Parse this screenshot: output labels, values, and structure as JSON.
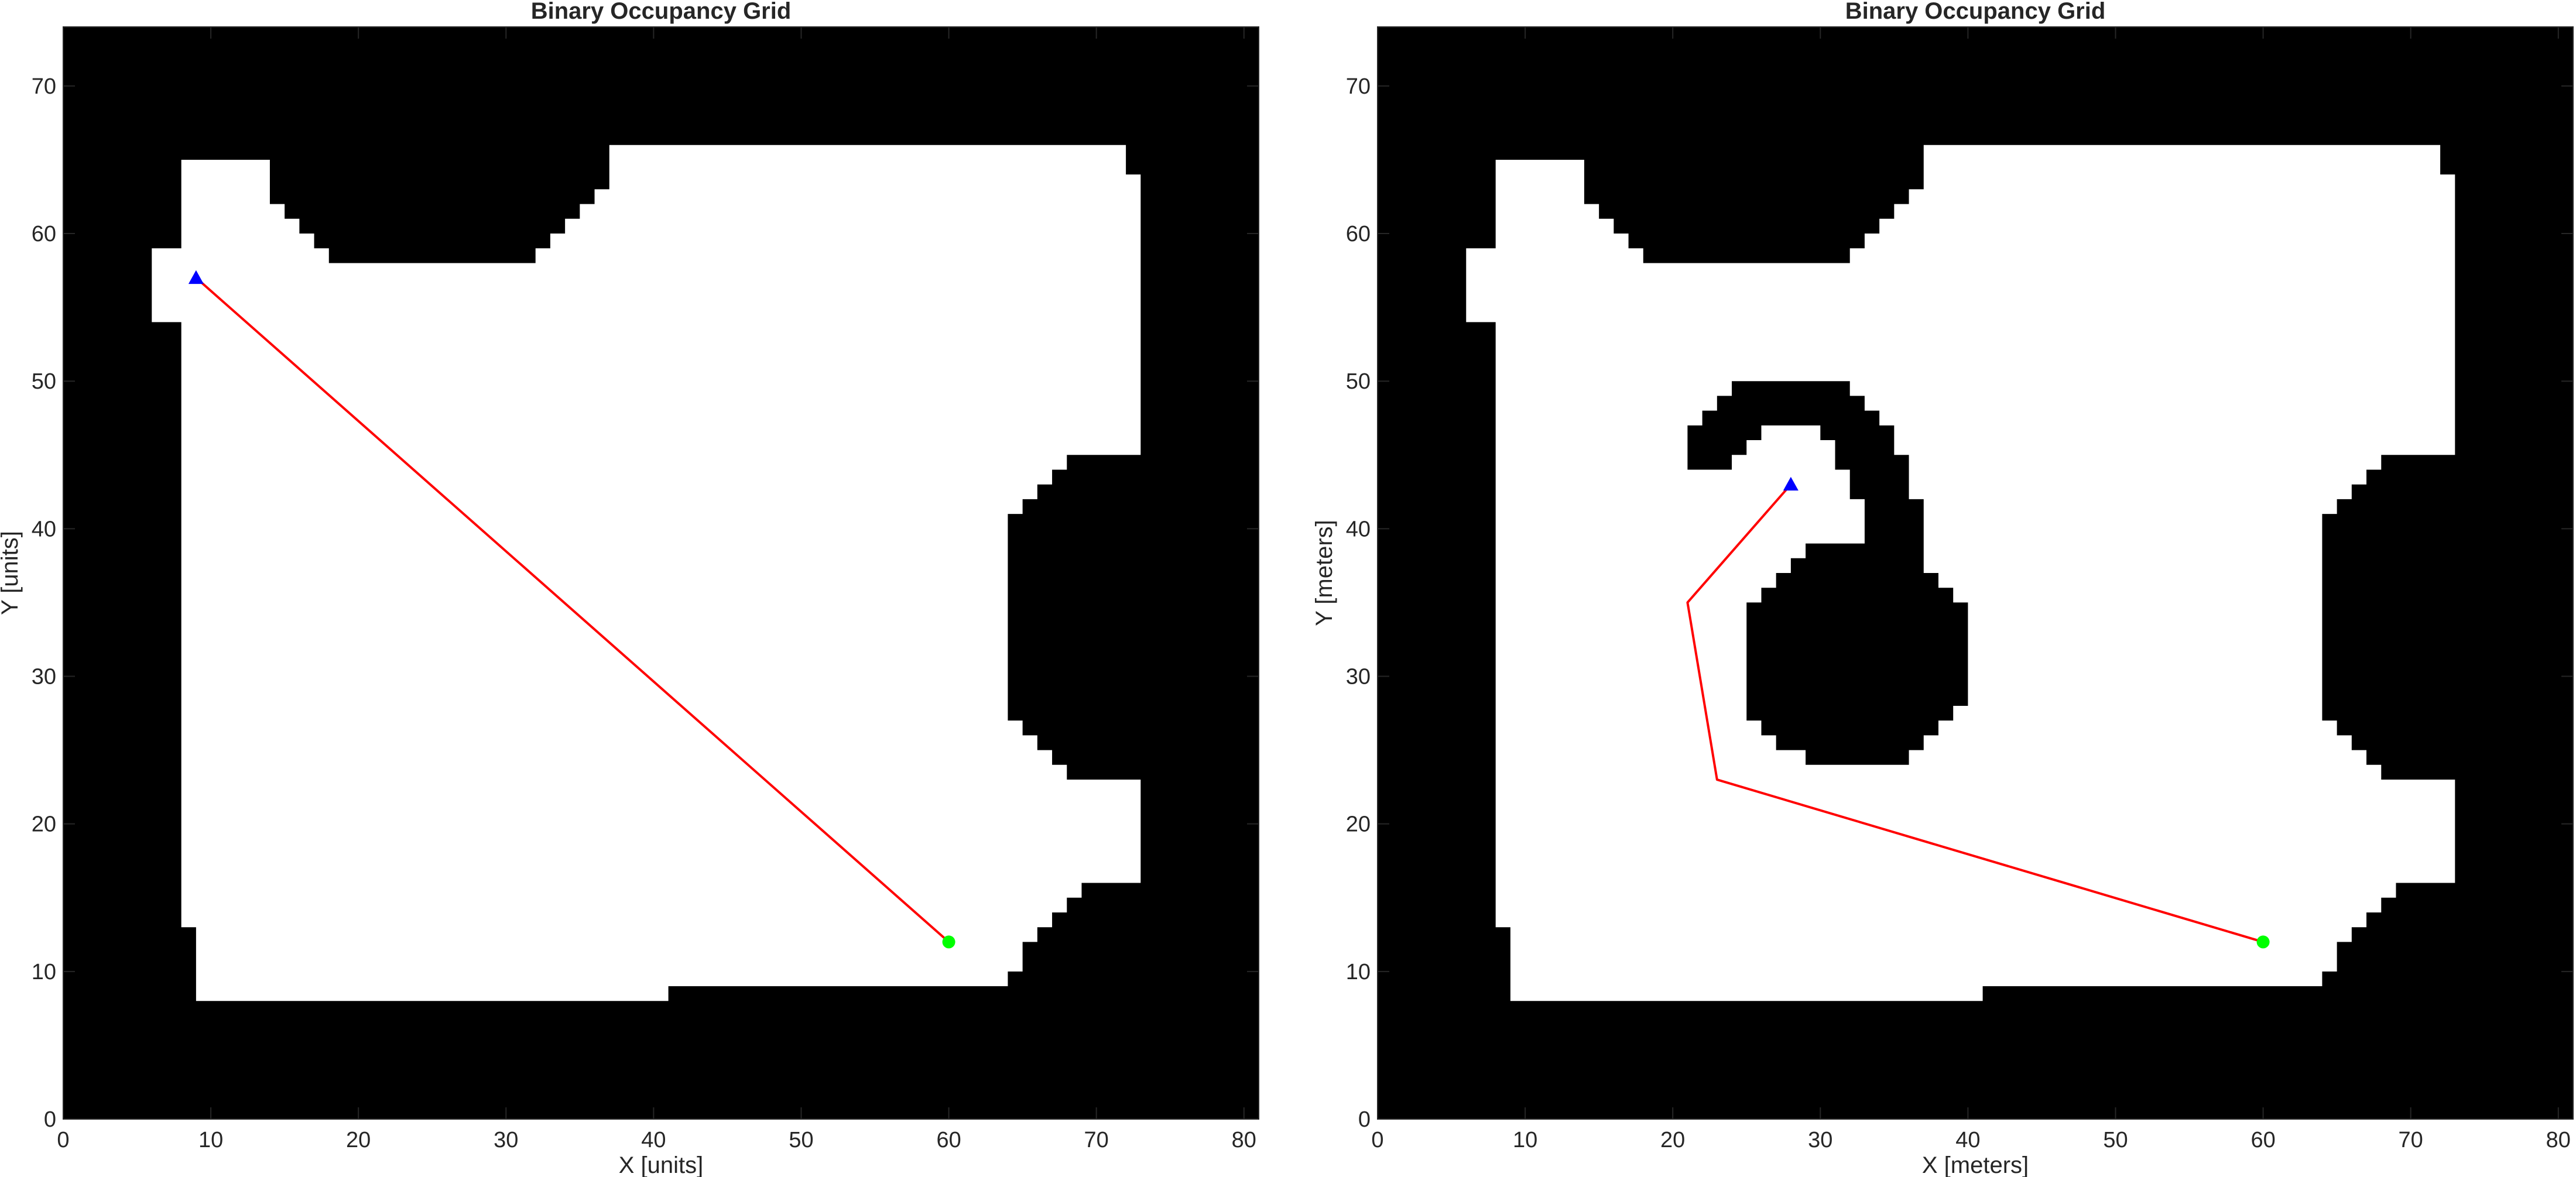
{
  "chart_data": [
    {
      "type": "occupancy-grid",
      "title": "Binary Occupancy Grid",
      "xlabel": "X [units]",
      "ylabel": "Y [units]",
      "xlim": [
        0,
        81
      ],
      "ylim": [
        0,
        74
      ],
      "xticks": [
        "0",
        "10",
        "20",
        "30",
        "40",
        "50",
        "60",
        "70",
        "80"
      ],
      "yticks": [
        "0",
        "10",
        "20",
        "30",
        "40",
        "50",
        "60",
        "70"
      ],
      "colors": {
        "occupied": "#000000",
        "free": "#ffffff",
        "path": "#ff0000",
        "start": "#0000ff",
        "goal": "#00ff00"
      },
      "start": {
        "x": 9,
        "y": 57,
        "marker": "triangle"
      },
      "goal": {
        "x": 60,
        "y": 12,
        "marker": "circle"
      },
      "path": [
        [
          9,
          57
        ],
        [
          60,
          12
        ]
      ],
      "free_area": [
        [
          6,
          59
        ],
        [
          8,
          59
        ],
        [
          8,
          65
        ],
        [
          14,
          65
        ],
        [
          14,
          62
        ],
        [
          15,
          62
        ],
        [
          15,
          61
        ],
        [
          16,
          61
        ],
        [
          16,
          60
        ],
        [
          17,
          60
        ],
        [
          17,
          59
        ],
        [
          18,
          59
        ],
        [
          18,
          58
        ],
        [
          32,
          58
        ],
        [
          32,
          59
        ],
        [
          33,
          59
        ],
        [
          33,
          60
        ],
        [
          34,
          60
        ],
        [
          34,
          61
        ],
        [
          35,
          61
        ],
        [
          35,
          62
        ],
        [
          36,
          62
        ],
        [
          36,
          63
        ],
        [
          37,
          63
        ],
        [
          37,
          66
        ],
        [
          72,
          66
        ],
        [
          72,
          64
        ],
        [
          73,
          64
        ],
        [
          73,
          45
        ],
        [
          68,
          45
        ],
        [
          68,
          44
        ],
        [
          67,
          44
        ],
        [
          67,
          43
        ],
        [
          66,
          43
        ],
        [
          66,
          42
        ],
        [
          65,
          42
        ],
        [
          65,
          41
        ],
        [
          64,
          41
        ],
        [
          64,
          27
        ],
        [
          65,
          27
        ],
        [
          65,
          26
        ],
        [
          66,
          26
        ],
        [
          66,
          25
        ],
        [
          67,
          25
        ],
        [
          67,
          24
        ],
        [
          68,
          24
        ],
        [
          68,
          23
        ],
        [
          73,
          23
        ],
        [
          73,
          16
        ],
        [
          69,
          16
        ],
        [
          69,
          15
        ],
        [
          68,
          15
        ],
        [
          68,
          14
        ],
        [
          67,
          14
        ],
        [
          67,
          13
        ],
        [
          66,
          13
        ],
        [
          66,
          12
        ],
        [
          65,
          12
        ],
        [
          65,
          10
        ],
        [
          64,
          10
        ],
        [
          64,
          9
        ],
        [
          41,
          9
        ],
        [
          41,
          8
        ],
        [
          9,
          8
        ],
        [
          9,
          13
        ],
        [
          8,
          13
        ],
        [
          8,
          54
        ],
        [
          6,
          54
        ]
      ],
      "obstacles": []
    },
    {
      "type": "occupancy-grid",
      "title": "Binary Occupancy Grid",
      "xlabel": "X [meters]",
      "ylabel": "Y [meters]",
      "xlim": [
        0,
        81
      ],
      "ylim": [
        0,
        74
      ],
      "xticks": [
        "0",
        "10",
        "20",
        "30",
        "40",
        "50",
        "60",
        "70",
        "80"
      ],
      "yticks": [
        "0",
        "10",
        "20",
        "30",
        "40",
        "50",
        "60",
        "70"
      ],
      "colors": {
        "occupied": "#000000",
        "free": "#ffffff",
        "path": "#ff0000",
        "start": "#0000ff",
        "goal": "#00ff00"
      },
      "start": {
        "x": 28,
        "y": 43,
        "marker": "triangle"
      },
      "goal": {
        "x": 60,
        "y": 12,
        "marker": "circle"
      },
      "path": [
        [
          28,
          43
        ],
        [
          21,
          35
        ],
        [
          23,
          23
        ],
        [
          60,
          12
        ]
      ],
      "free_area": [
        [
          6,
          59
        ],
        [
          8,
          59
        ],
        [
          8,
          65
        ],
        [
          14,
          65
        ],
        [
          14,
          62
        ],
        [
          15,
          62
        ],
        [
          15,
          61
        ],
        [
          16,
          61
        ],
        [
          16,
          60
        ],
        [
          17,
          60
        ],
        [
          17,
          59
        ],
        [
          18,
          59
        ],
        [
          18,
          58
        ],
        [
          32,
          58
        ],
        [
          32,
          59
        ],
        [
          33,
          59
        ],
        [
          33,
          60
        ],
        [
          34,
          60
        ],
        [
          34,
          61
        ],
        [
          35,
          61
        ],
        [
          35,
          62
        ],
        [
          36,
          62
        ],
        [
          36,
          63
        ],
        [
          37,
          63
        ],
        [
          37,
          66
        ],
        [
          72,
          66
        ],
        [
          72,
          64
        ],
        [
          73,
          64
        ],
        [
          73,
          45
        ],
        [
          68,
          45
        ],
        [
          68,
          44
        ],
        [
          67,
          44
        ],
        [
          67,
          43
        ],
        [
          66,
          43
        ],
        [
          66,
          42
        ],
        [
          65,
          42
        ],
        [
          65,
          41
        ],
        [
          64,
          41
        ],
        [
          64,
          27
        ],
        [
          65,
          27
        ],
        [
          65,
          26
        ],
        [
          66,
          26
        ],
        [
          66,
          25
        ],
        [
          67,
          25
        ],
        [
          67,
          24
        ],
        [
          68,
          24
        ],
        [
          68,
          23
        ],
        [
          73,
          23
        ],
        [
          73,
          16
        ],
        [
          69,
          16
        ],
        [
          69,
          15
        ],
        [
          68,
          15
        ],
        [
          68,
          14
        ],
        [
          67,
          14
        ],
        [
          67,
          13
        ],
        [
          66,
          13
        ],
        [
          66,
          12
        ],
        [
          65,
          12
        ],
        [
          65,
          10
        ],
        [
          64,
          10
        ],
        [
          64,
          9
        ],
        [
          41,
          9
        ],
        [
          41,
          8
        ],
        [
          9,
          8
        ],
        [
          9,
          13
        ],
        [
          8,
          13
        ],
        [
          8,
          54
        ],
        [
          6,
          54
        ]
      ],
      "obstacles": [
        [
          [
            21,
            44
          ],
          [
            21,
            47
          ],
          [
            22,
            47
          ],
          [
            22,
            48
          ],
          [
            23,
            48
          ],
          [
            23,
            49
          ],
          [
            24,
            49
          ],
          [
            24,
            50
          ],
          [
            32,
            50
          ],
          [
            32,
            49
          ],
          [
            33,
            49
          ],
          [
            33,
            48
          ],
          [
            34,
            48
          ],
          [
            34,
            47
          ],
          [
            35,
            47
          ],
          [
            35,
            45
          ],
          [
            36,
            45
          ],
          [
            36,
            42
          ],
          [
            37,
            42
          ],
          [
            37,
            37
          ],
          [
            38,
            37
          ],
          [
            38,
            36
          ],
          [
            39,
            36
          ],
          [
            39,
            35
          ],
          [
            40,
            35
          ],
          [
            40,
            28
          ],
          [
            39,
            28
          ],
          [
            39,
            27
          ],
          [
            38,
            27
          ],
          [
            38,
            26
          ],
          [
            37,
            26
          ],
          [
            37,
            25
          ],
          [
            36,
            25
          ],
          [
            36,
            24
          ],
          [
            29,
            24
          ],
          [
            29,
            25
          ],
          [
            27,
            25
          ],
          [
            27,
            26
          ],
          [
            26,
            26
          ],
          [
            26,
            27
          ],
          [
            25,
            27
          ],
          [
            25,
            35
          ],
          [
            26,
            35
          ],
          [
            26,
            36
          ],
          [
            27,
            36
          ],
          [
            27,
            37
          ],
          [
            28,
            37
          ],
          [
            28,
            38
          ],
          [
            29,
            38
          ],
          [
            29,
            39
          ],
          [
            33,
            39
          ],
          [
            33,
            42
          ],
          [
            32,
            42
          ],
          [
            32,
            44
          ],
          [
            31,
            44
          ],
          [
            31,
            46
          ],
          [
            30,
            46
          ],
          [
            30,
            47
          ],
          [
            26,
            47
          ],
          [
            26,
            46
          ],
          [
            25,
            46
          ],
          [
            25,
            45
          ],
          [
            24,
            45
          ],
          [
            24,
            44
          ]
        ]
      ]
    }
  ]
}
